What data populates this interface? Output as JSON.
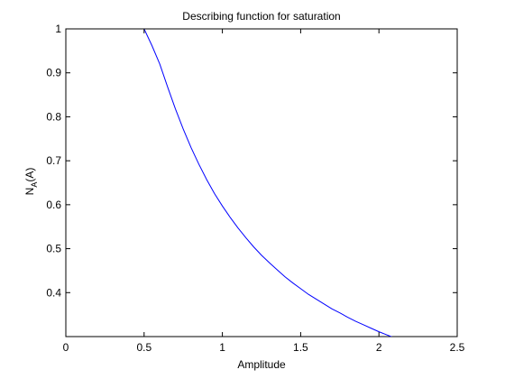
{
  "chart_data": {
    "type": "line",
    "title": "Describing function for saturation",
    "xlabel": "Amplitude",
    "ylabel_main": "N",
    "ylabel_sub": "A",
    "ylabel_suffix": "(A)",
    "xlim": [
      0,
      2.5
    ],
    "ylim": [
      0.3,
      1.0
    ],
    "xticks": [
      0,
      0.5,
      1,
      1.5,
      2,
      2.5
    ],
    "xtick_labels": [
      "0",
      "0.5",
      "1",
      "1.5",
      "2",
      "2.5"
    ],
    "yticks": [
      0.4,
      0.5,
      0.6,
      0.7,
      0.8,
      0.9,
      1.0
    ],
    "ytick_labels": [
      "0.4",
      "0.5",
      "0.6",
      "0.7",
      "0.8",
      "0.9",
      "1"
    ],
    "grid": false,
    "series": [
      {
        "color": "#0000ff",
        "x": [
          0.5,
          0.55,
          0.6,
          0.65,
          0.7,
          0.75,
          0.8,
          0.85,
          0.9,
          0.95,
          1.0,
          1.05,
          1.1,
          1.15,
          1.2,
          1.25,
          1.3,
          1.35,
          1.4,
          1.45,
          1.5,
          1.55,
          1.6,
          1.65,
          1.7,
          1.75,
          1.8,
          1.85,
          1.9,
          1.95,
          2.0,
          2.05,
          2.1
        ],
        "y": [
          1.0,
          0.962,
          0.92,
          0.868,
          0.818,
          0.772,
          0.73,
          0.692,
          0.657,
          0.625,
          0.597,
          0.571,
          0.547,
          0.525,
          0.504,
          0.485,
          0.468,
          0.452,
          0.436,
          0.422,
          0.409,
          0.396,
          0.385,
          0.374,
          0.363,
          0.354,
          0.344,
          0.335,
          0.327,
          0.319,
          0.311,
          0.304,
          0.297
        ]
      }
    ]
  }
}
